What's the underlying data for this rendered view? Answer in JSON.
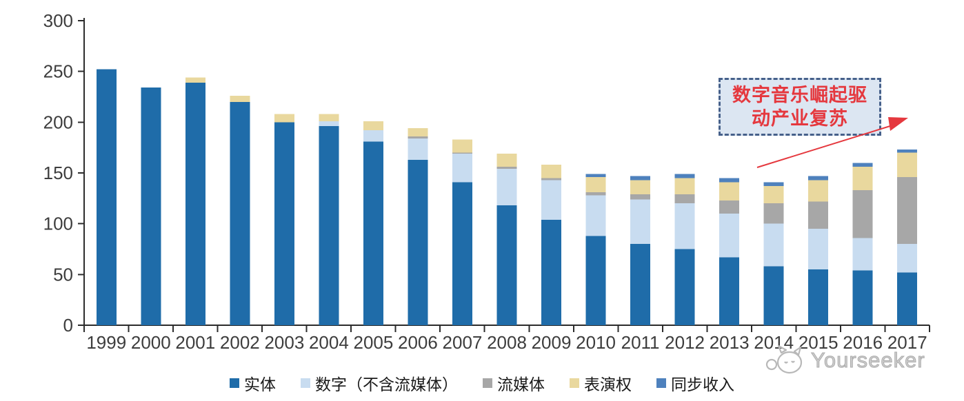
{
  "chart_data": {
    "type": "bar",
    "stacked": true,
    "categories": [
      "1999",
      "2000",
      "2001",
      "2002",
      "2003",
      "2004",
      "2005",
      "2006",
      "2007",
      "2008",
      "2009",
      "2010",
      "2011",
      "2012",
      "2013",
      "2014",
      "2015",
      "2016",
      "2017"
    ],
    "series": [
      {
        "name": "实体",
        "color": "#1f6ca9",
        "values": [
          252,
          234,
          239,
          220,
          200,
          196,
          181,
          163,
          141,
          118,
          104,
          88,
          80,
          75,
          67,
          58,
          55,
          54,
          52
        ]
      },
      {
        "name": "数字（不含流媒体）",
        "color": "#c8dcf0",
        "values": [
          0,
          0,
          0,
          0,
          0,
          5,
          11,
          21,
          28,
          36,
          39,
          40,
          44,
          45,
          43,
          42,
          40,
          32,
          28
        ]
      },
      {
        "name": "流媒体",
        "color": "#a7a7a7",
        "values": [
          0,
          0,
          0,
          0,
          0,
          0,
          0,
          2,
          1,
          2,
          2,
          3,
          5,
          9,
          13,
          20,
          27,
          47,
          66
        ]
      },
      {
        "name": "表演权",
        "color": "#e9d89e",
        "values": [
          0,
          0,
          5,
          6,
          8,
          7,
          9,
          8,
          13,
          13,
          13,
          15,
          14,
          16,
          18,
          17,
          21,
          23,
          24
        ]
      },
      {
        "name": "同步收入",
        "color": "#4e81bd",
        "values": [
          0,
          0,
          0,
          0,
          0,
          0,
          0,
          0,
          0,
          0,
          0,
          3,
          4,
          4,
          4,
          4,
          4,
          4,
          3
        ]
      }
    ],
    "xlabel": "",
    "ylabel": "",
    "ylim": [
      0,
      300
    ],
    "yticks": [
      0,
      50,
      100,
      150,
      200,
      250,
      300
    ],
    "grid": false,
    "legend_position": "bottom"
  },
  "annotation": {
    "lines": [
      "数字音乐崛起驱",
      "动产业复苏"
    ]
  },
  "watermark": {
    "label": "Yourseeker",
    "icon": "cat-logo"
  },
  "colors": {
    "axis": "#2b2b2b",
    "axis_text": "#3d3d3d",
    "annotation_border": "#46608a",
    "annotation_fill": "#dce6f2",
    "annotation_text": "#e5383e",
    "arrow_red": "#e5383e",
    "watermark_gray": "#ababab"
  }
}
